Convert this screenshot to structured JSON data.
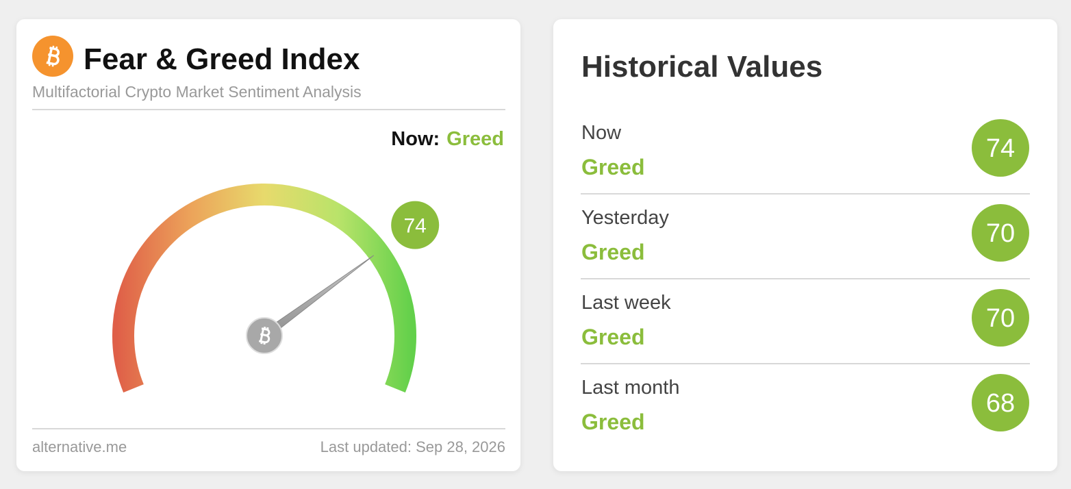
{
  "index_card": {
    "title": "Fear & Greed Index",
    "subtitle": "Multifactorial Crypto Market Sentiment Analysis",
    "now_label": "Now:",
    "now_classification": "Greed",
    "gauge": {
      "value": 74,
      "range": [
        0,
        100
      ]
    },
    "source": "alternative.me",
    "updated": "Last updated: Sep 28, 2026"
  },
  "history_card": {
    "title": "Historical Values",
    "rows": [
      {
        "label": "Now",
        "classification": "Greed",
        "value": 74
      },
      {
        "label": "Yesterday",
        "classification": "Greed",
        "value": 70
      },
      {
        "label": "Last week",
        "classification": "Greed",
        "value": 70
      },
      {
        "label": "Last month",
        "classification": "Greed",
        "value": 68
      }
    ]
  }
}
